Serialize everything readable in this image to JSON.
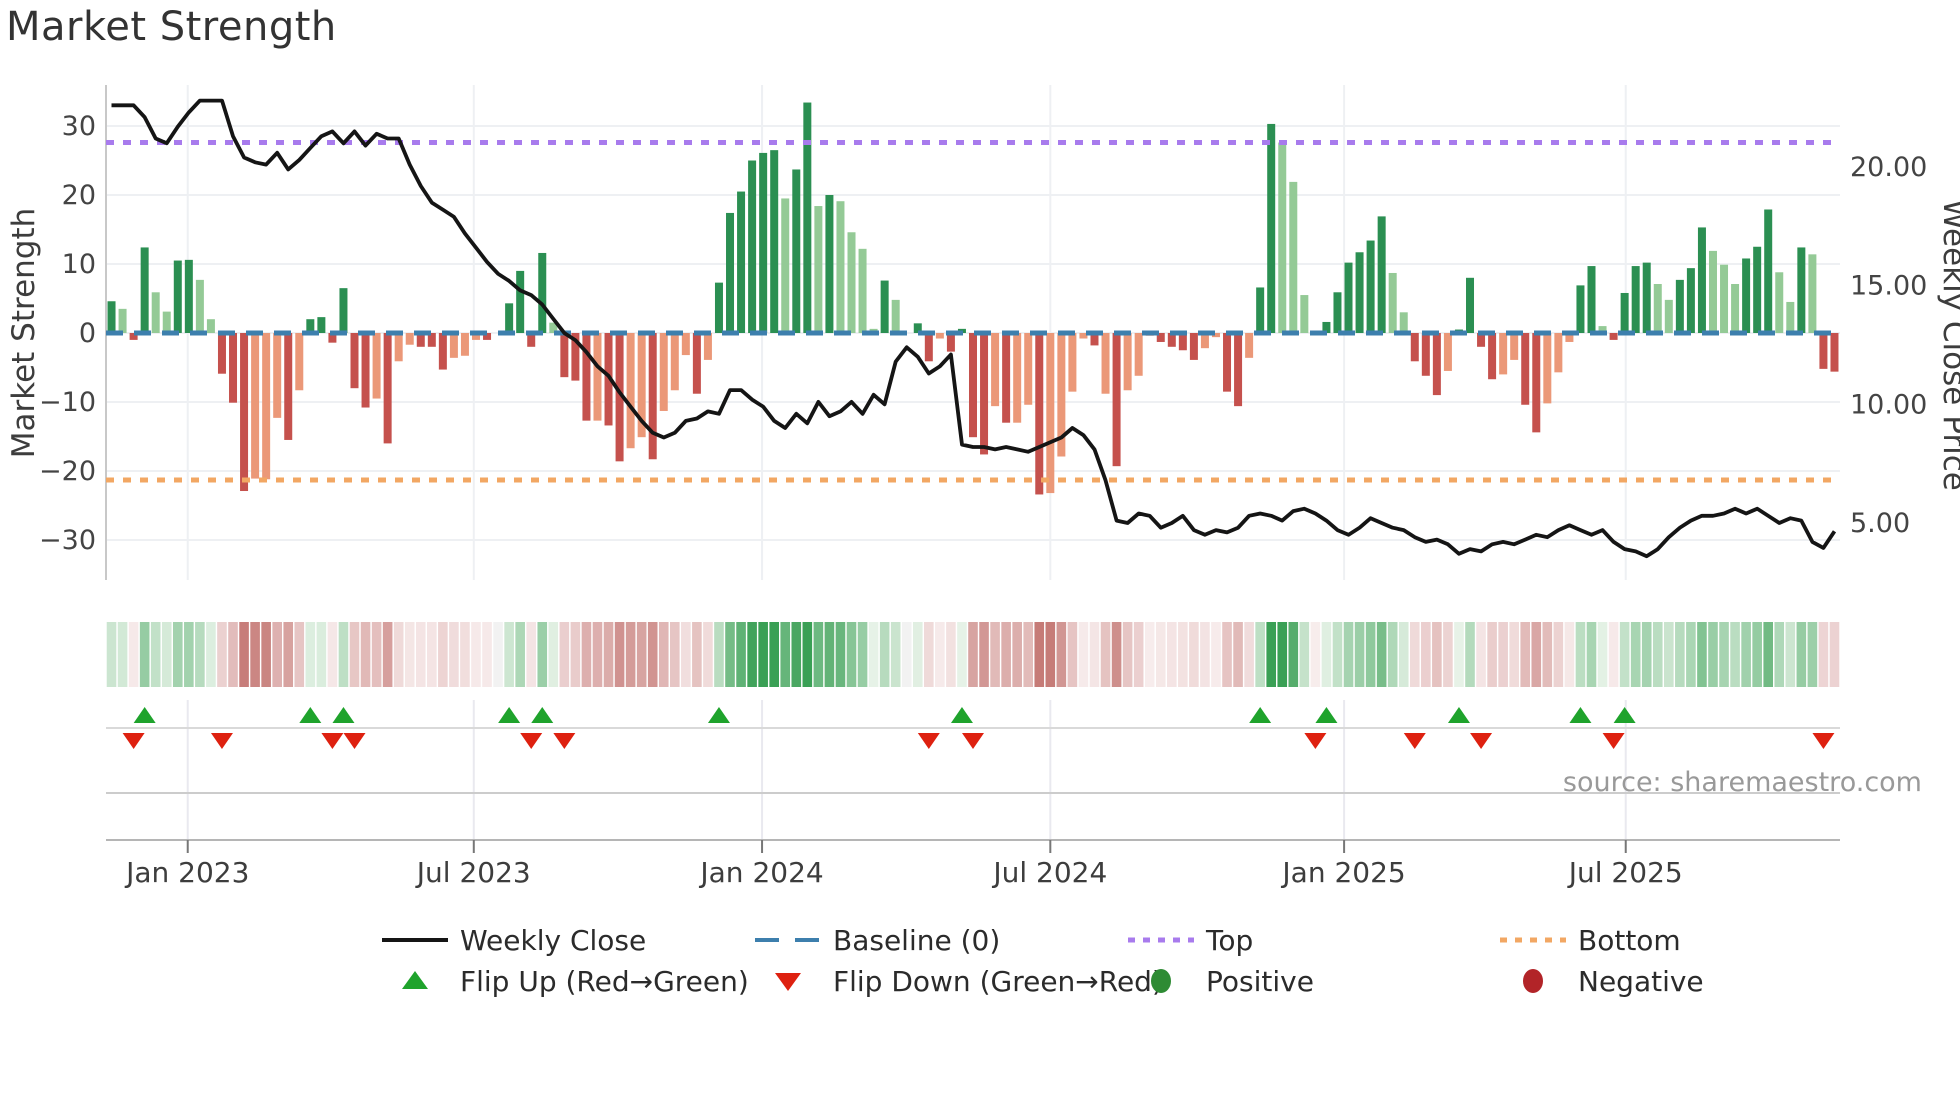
{
  "title": "Market Strength",
  "source_text": "source: sharemaestro.com",
  "axes": {
    "left_title": "Market Strength",
    "right_title": "Weekly Close Price",
    "left_tick_labels": [
      "30",
      "20",
      "10",
      "0",
      "−10",
      "−20",
      "−30"
    ],
    "left_tick_values": [
      30,
      20,
      10,
      0,
      -10,
      -20,
      -30
    ],
    "right_tick_labels": [
      "20.00",
      "15.00",
      "10.00",
      "5.00"
    ],
    "right_tick_values": [
      20,
      15,
      10,
      5
    ],
    "x_tick_labels": [
      "Jan 2023",
      "Jul 2023",
      "Jan 2024",
      "Jul 2024",
      "Jan 2025",
      "Jul 2025"
    ],
    "x_tick_weeks": [
      7.4,
      33.3,
      59.4,
      85.5,
      112.1,
      137.6
    ]
  },
  "legend": {
    "rows": [
      [
        {
          "label": "Weekly Close",
          "swatch": "line"
        },
        {
          "label": "Baseline (0)",
          "swatch": "dash-blue"
        },
        {
          "label": "Top",
          "swatch": "dots-purple"
        },
        {
          "label": "Bottom",
          "swatch": "dots-orange"
        }
      ],
      [
        {
          "label": "Flip Up (Red→Green)",
          "swatch": "triangle-up"
        },
        {
          "label": "Flip Down (Green→Red)",
          "swatch": "triangle-down"
        },
        {
          "label": "Positive",
          "swatch": "circle-green"
        },
        {
          "label": "Negative",
          "swatch": "circle-red"
        }
      ]
    ]
  },
  "colors": {
    "bar_pos_dark": "#2b8f52",
    "bar_pos_light": "#94ca96",
    "bar_neg_dark": "#c5514d",
    "bar_neg_light": "#eb9878",
    "baseline": "#3d7fad",
    "top_line": "#a87bed",
    "bottom_line": "#f2a763",
    "close_line": "#151515",
    "flip_up": "#1fa32c",
    "flip_down": "#de2110",
    "positive_dot": "#2e8b34",
    "negative_dot": "#b22428",
    "heat_pos_max": "#3aa055",
    "heat_pos_min": "#eaf4ea",
    "heat_neg_max": "#c06e6a",
    "heat_neg_min": "#f8eeee",
    "grid": "#eef0f3",
    "spine": "#c8c8c8",
    "tick_text": "#444444",
    "source": "#999999"
  },
  "chart_data": {
    "type": "combo",
    "weeks": 157,
    "left_axis_range": [
      -36,
      36
    ],
    "right_axis_range": [
      2.5,
      23.5
    ],
    "baseline_value": 0,
    "top_threshold": 27.6,
    "bottom_threshold": -21.3,
    "grid": true,
    "legend_position": "bottom",
    "series": [
      {
        "name": "Market Strength",
        "type": "bar",
        "axis": "left",
        "values": [
          4.6,
          3.5,
          -1,
          12.4,
          5.9,
          3.1,
          10.5,
          10.6,
          7.7,
          2,
          -5.9,
          -10.1,
          -22.9,
          -21.1,
          -21.2,
          -12.3,
          -15.5,
          -8.3,
          2,
          2.3,
          -1.4,
          6.5,
          -8,
          -10.8,
          -9.5,
          -16,
          -4.1,
          -1.7,
          -2,
          -2,
          -5.3,
          -3.6,
          -3.3,
          -1,
          -1,
          0,
          4.3,
          9,
          -2,
          11.6,
          1.5,
          -6.4,
          -6.9,
          -12.7,
          -12.7,
          -13.4,
          -18.6,
          -16.7,
          -15.1,
          -18.3,
          -11.3,
          -8.3,
          -3.2,
          -8.8,
          -3.9,
          7.3,
          17.4,
          20.5,
          25,
          26.1,
          26.5,
          19.5,
          23.7,
          33.4,
          18.4,
          20,
          19.1,
          14.6,
          12.2,
          0.6,
          7.6,
          4.8,
          0,
          1.4,
          -4.1,
          -0.8,
          -2.7,
          0.6,
          -15.1,
          -17.6,
          -10.6,
          -13,
          -13,
          -10.4,
          -23.4,
          -23.2,
          -17.9,
          -8.5,
          -0.8,
          -1.8,
          -8.8,
          -19.3,
          -8.3,
          -6.2,
          -0.4,
          -1.3,
          -2,
          -2.5,
          -3.9,
          -2.2,
          -0.6,
          -8.5,
          -10.6,
          -3.6,
          6.6,
          30.3,
          27.6,
          21.9,
          5.5,
          -0.3,
          1.6,
          5.9,
          10.2,
          11.7,
          13.4,
          16.9,
          8.7,
          3,
          -4.1,
          -6.2,
          -9,
          -5.5,
          0.5,
          8,
          -2,
          -6.7,
          -6,
          -3.9,
          -10.4,
          -14.4,
          -10.2,
          -5.7,
          -1.3,
          6.9,
          9.7,
          1,
          -1,
          5.8,
          9.7,
          10.2,
          7.1,
          4.8,
          7.7,
          9.4,
          15.3,
          11.9,
          9.9,
          7.1,
          10.8,
          12.5,
          17.9,
          8.8,
          4.5,
          12.4,
          11.4,
          -5.2,
          -5.6
        ],
        "shades": [
          "d",
          "l",
          "d",
          "d",
          "l",
          "l",
          "d",
          "d",
          "l",
          "l",
          "d",
          "d",
          "d",
          "l",
          "l",
          "l",
          "d",
          "l",
          "d",
          "d",
          "d",
          "d",
          "d",
          "d",
          "l",
          "d",
          "l",
          "l",
          "d",
          "d",
          "d",
          "l",
          "l",
          "l",
          "d",
          "l",
          "d",
          "d",
          "d",
          "d",
          "l",
          "d",
          "d",
          "d",
          "l",
          "d",
          "d",
          "l",
          "l",
          "d",
          "l",
          "l",
          "l",
          "d",
          "l",
          "d",
          "d",
          "d",
          "d",
          "d",
          "d",
          "l",
          "d",
          "d",
          "l",
          "d",
          "l",
          "l",
          "l",
          "l",
          "d",
          "l",
          "l",
          "d",
          "d",
          "l",
          "d",
          "d",
          "d",
          "d",
          "l",
          "d",
          "l",
          "l",
          "d",
          "l",
          "l",
          "l",
          "l",
          "d",
          "l",
          "d",
          "l",
          "l",
          "l",
          "d",
          "d",
          "d",
          "d",
          "l",
          "l",
          "d",
          "d",
          "l",
          "d",
          "d",
          "l",
          "l",
          "l",
          "l",
          "d",
          "d",
          "d",
          "d",
          "d",
          "d",
          "l",
          "l",
          "d",
          "d",
          "d",
          "l",
          "d",
          "d",
          "d",
          "d",
          "l",
          "l",
          "d",
          "d",
          "l",
          "l",
          "l",
          "d",
          "d",
          "l",
          "d",
          "d",
          "d",
          "d",
          "l",
          "l",
          "d",
          "d",
          "d",
          "l",
          "l",
          "l",
          "d",
          "d",
          "d",
          "l",
          "l",
          "d",
          "l",
          "d",
          "d"
        ]
      },
      {
        "name": "Weekly Close",
        "type": "line",
        "axis": "right",
        "values": [
          22.6,
          22.6,
          22.6,
          22.1,
          21.2,
          21.0,
          21.7,
          22.3,
          22.8,
          22.8,
          22.8,
          21.3,
          20.4,
          20.2,
          20.1,
          20.6,
          19.9,
          20.3,
          20.8,
          21.3,
          21.5,
          21.0,
          21.5,
          20.9,
          21.4,
          21.2,
          21.2,
          20.1,
          19.2,
          18.5,
          18.2,
          17.9,
          17.2,
          16.6,
          16.0,
          15.5,
          15.2,
          14.8,
          14.6,
          14.2,
          13.6,
          13.0,
          12.7,
          12.2,
          11.6,
          11.2,
          10.5,
          9.9,
          9.3,
          8.8,
          8.6,
          8.8,
          9.3,
          9.4,
          9.7,
          9.6,
          10.6,
          10.6,
          10.2,
          9.9,
          9.3,
          9.0,
          9.6,
          9.2,
          10.1,
          9.5,
          9.7,
          10.1,
          9.6,
          10.4,
          10.0,
          11.8,
          12.4,
          12.0,
          11.3,
          11.6,
          12.1,
          8.3,
          8.2,
          8.2,
          8.1,
          8.2,
          8.1,
          8.0,
          8.2,
          8.4,
          8.6,
          9.0,
          8.7,
          8.1,
          6.8,
          5.1,
          5.0,
          5.4,
          5.3,
          4.8,
          5.0,
          5.3,
          4.7,
          4.5,
          4.7,
          4.6,
          4.8,
          5.3,
          5.4,
          5.3,
          5.1,
          5.5,
          5.6,
          5.4,
          5.1,
          4.7,
          4.5,
          4.8,
          5.2,
          5.0,
          4.8,
          4.7,
          4.4,
          4.2,
          4.3,
          4.1,
          3.7,
          3.9,
          3.8,
          4.1,
          4.2,
          4.1,
          4.3,
          4.5,
          4.4,
          4.7,
          4.9,
          4.7,
          4.5,
          4.7,
          4.2,
          3.9,
          3.8,
          3.6,
          3.9,
          4.4,
          4.8,
          5.1,
          5.3,
          5.3,
          5.4,
          5.6,
          5.4,
          5.6,
          5.3,
          5.0,
          5.2,
          5.1,
          4.2,
          3.95,
          4.65
        ]
      }
    ]
  }
}
